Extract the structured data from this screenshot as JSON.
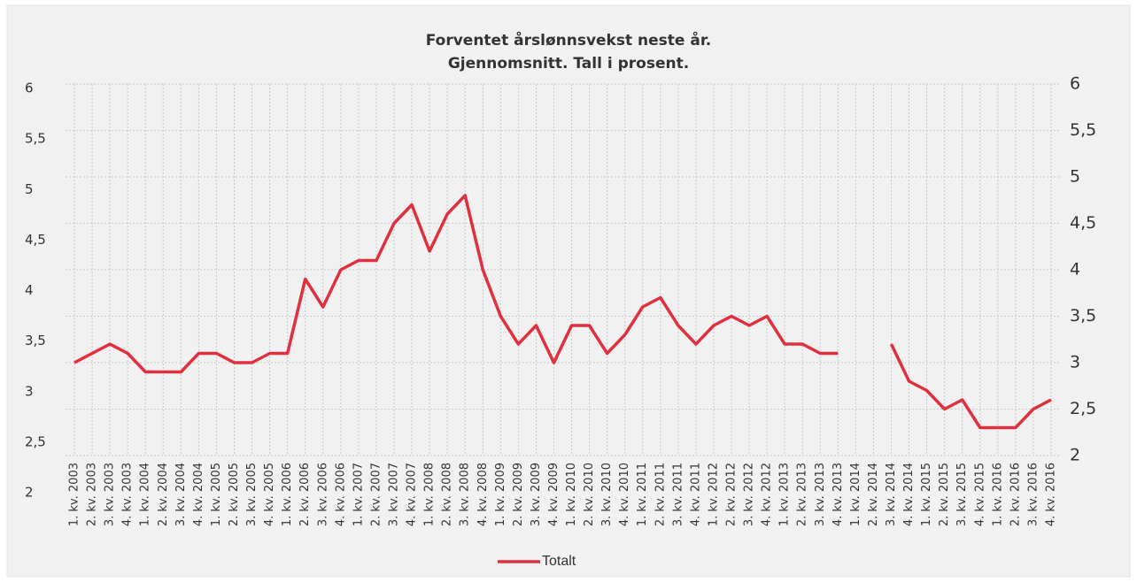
{
  "chart_data": {
    "type": "line",
    "title": [
      "Forventet årslønnsvekst neste år.",
      "Gjennomsnitt. Tall i prosent."
    ],
    "categories": [
      "1. kv. 2003",
      "2. kv. 2003",
      "3. kv. 2003",
      "4. kv. 2003",
      "1. kv. 2004",
      "2. kv. 2004",
      "3. kv. 2004",
      "4. kv. 2004",
      "1. kv. 2005",
      "2. kv. 2005",
      "3. kv. 2005",
      "4. kv. 2005",
      "1. kv. 2006",
      "2. kv. 2006",
      "3. kv. 2006",
      "4. kv. 2006",
      "1. kv. 2007",
      "2. kv. 2007",
      "3. kv. 2007",
      "4. kv. 2007",
      "1. kv. 2008",
      "2. kv. 2008",
      "3. kv. 2008",
      "4. kv. 2008",
      "1. kv. 2009",
      "2. kv. 2009",
      "3. kv. 2009",
      "4. kv. 2009",
      "1. kv. 2010",
      "2. kv. 2010",
      "3. kv. 2010",
      "4. kv. 2010",
      "1. kv. 2011",
      "2. kv. 2011",
      "3. kv. 2011",
      "4. kv. 2011",
      "1. kv. 2012",
      "2. kv. 2012",
      "3. kv. 2012",
      "4. kv. 2012",
      "1. kv. 2013",
      "2. kv. 2013",
      "3. kv. 2013",
      "4. kv. 2013",
      "1. kv. 2014",
      "2. kv. 2014",
      "3. kv. 2014",
      "4. kv. 2014",
      "1. kv. 2015",
      "2. kv. 2015",
      "3. kv. 2015",
      "4. kv. 2015",
      "1. kv. 2016",
      "2. kv. 2016",
      "3. kv. 2016",
      "4. kv. 2016"
    ],
    "series": [
      {
        "name": "Totalt",
        "color": "#e0303f",
        "axis": "y2",
        "values": [
          3.0,
          3.1,
          3.2,
          3.1,
          2.9,
          2.9,
          2.9,
          3.1,
          3.1,
          3.0,
          3.0,
          3.1,
          3.1,
          3.9,
          3.6,
          4.0,
          4.1,
          4.1,
          4.5,
          4.7,
          4.2,
          4.6,
          4.8,
          4.0,
          3.5,
          3.2,
          3.4,
          3.0,
          3.4,
          3.4,
          3.1,
          3.3,
          3.6,
          3.7,
          3.4,
          3.2,
          3.4,
          3.5,
          3.4,
          3.5,
          3.2,
          3.2,
          3.1,
          3.1,
          null,
          null,
          3.2,
          2.8,
          2.7,
          2.5,
          2.6,
          2.3,
          2.3,
          2.3,
          2.5,
          2.6
        ]
      }
    ],
    "ylim": [
      2,
      6
    ],
    "yticks": [
      2,
      {
        "value": 2.5,
        "label": "2,5"
      },
      3,
      {
        "value": 3.5,
        "label": "3,5"
      },
      4,
      {
        "value": 4.5,
        "label": "4,5"
      },
      5,
      {
        "value": 5.5,
        "label": "5,5"
      },
      6
    ],
    "y2lim": [
      2,
      6
    ],
    "y2ticks": [
      2,
      {
        "value": 2.5,
        "label": "2,5"
      },
      3,
      {
        "value": 3.5,
        "label": "3,5"
      },
      4,
      {
        "value": 4.5,
        "label": "4,5"
      },
      5,
      {
        "value": 5.5,
        "label": "5,5"
      },
      6
    ],
    "grid": true,
    "legend": "bottom"
  }
}
